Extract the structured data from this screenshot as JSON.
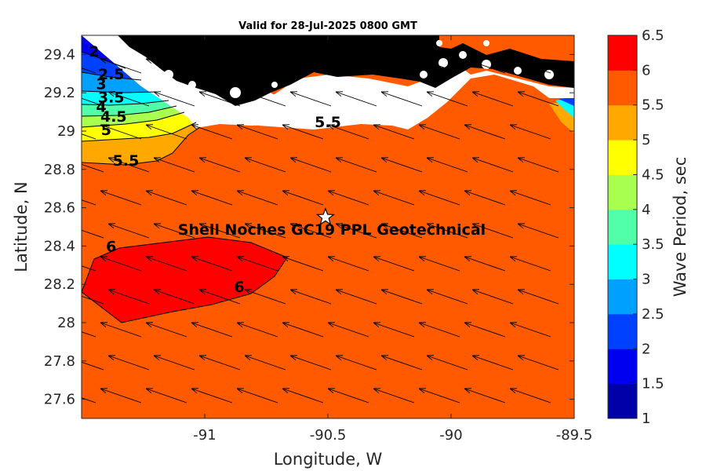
{
  "title": "Valid for 28-Jul-2025 0800 GMT",
  "x_label": "Longitude, W",
  "y_label": "Latitude, N",
  "x_ticks": [
    "-91",
    "-90.5",
    "-90",
    "-89.5"
  ],
  "x_tick_values": [
    -91,
    -90.5,
    -90,
    -89.5
  ],
  "y_ticks": [
    "27.6",
    "27.8",
    "28",
    "28.2",
    "28.4",
    "28.6",
    "28.8",
    "29",
    "29.2",
    "29.4"
  ],
  "y_tick_values": [
    27.6,
    27.8,
    28.0,
    28.2,
    28.4,
    28.6,
    28.8,
    29.0,
    29.2,
    29.4
  ],
  "lon_range": [
    -91.5,
    -89.5
  ],
  "lat_range": [
    27.5,
    29.5
  ],
  "site_label": "Shell Noches   GC19 PPL  Geotechnical",
  "site_marker": {
    "lon": -90.51,
    "lat": 28.55,
    "symbol": "white-star"
  },
  "colorbar": {
    "label": "Wave Period, sec",
    "tick_labels": [
      "1",
      "1.5",
      "2",
      "2.5",
      "3",
      "3.5",
      "4",
      "4.5",
      "5",
      "5.5",
      "6",
      "6.5"
    ],
    "levels": [
      1,
      1.5,
      2,
      2.5,
      3,
      3.5,
      4,
      4.5,
      5,
      5.5,
      6,
      6.5
    ],
    "colors": [
      "#0000a8",
      "#0000f0",
      "#0040ff",
      "#00a0ff",
      "#00ffff",
      "#50ffa8",
      "#a8ff50",
      "#ffff00",
      "#ffa800",
      "#ff5a00",
      "#ff0000"
    ]
  },
  "contour_labels": [
    {
      "text": "2",
      "lon": -91.45,
      "lat": 29.39
    },
    {
      "text": "2.5",
      "lon": -91.38,
      "lat": 29.27
    },
    {
      "text": "3",
      "lon": -91.42,
      "lat": 29.22
    },
    {
      "text": "3.5",
      "lon": -91.38,
      "lat": 29.15
    },
    {
      "text": "4",
      "lon": -91.42,
      "lat": 29.1
    },
    {
      "text": "4.5",
      "lon": -91.37,
      "lat": 29.05
    },
    {
      "text": "5",
      "lon": -91.4,
      "lat": 28.98
    },
    {
      "text": "5.5",
      "lon": -91.32,
      "lat": 28.82
    },
    {
      "text": "6",
      "lon": -91.38,
      "lat": 28.37
    },
    {
      "text": "6",
      "lon": -90.86,
      "lat": 28.16
    },
    {
      "text": "5.5",
      "lon": -90.5,
      "lat": 29.02
    }
  ],
  "chart_data": {
    "type": "map",
    "variable": "Wave Period, sec",
    "color_scale": [
      1,
      6.5
    ],
    "dominant_value_range": [
      5.5,
      6
    ],
    "max_region_value": 6,
    "wave_direction": "arrows point toward north-west",
    "site": {
      "name": "Shell Noches GC19 PPL Geotechnical",
      "lon": -90.51,
      "lat": 28.55
    }
  }
}
